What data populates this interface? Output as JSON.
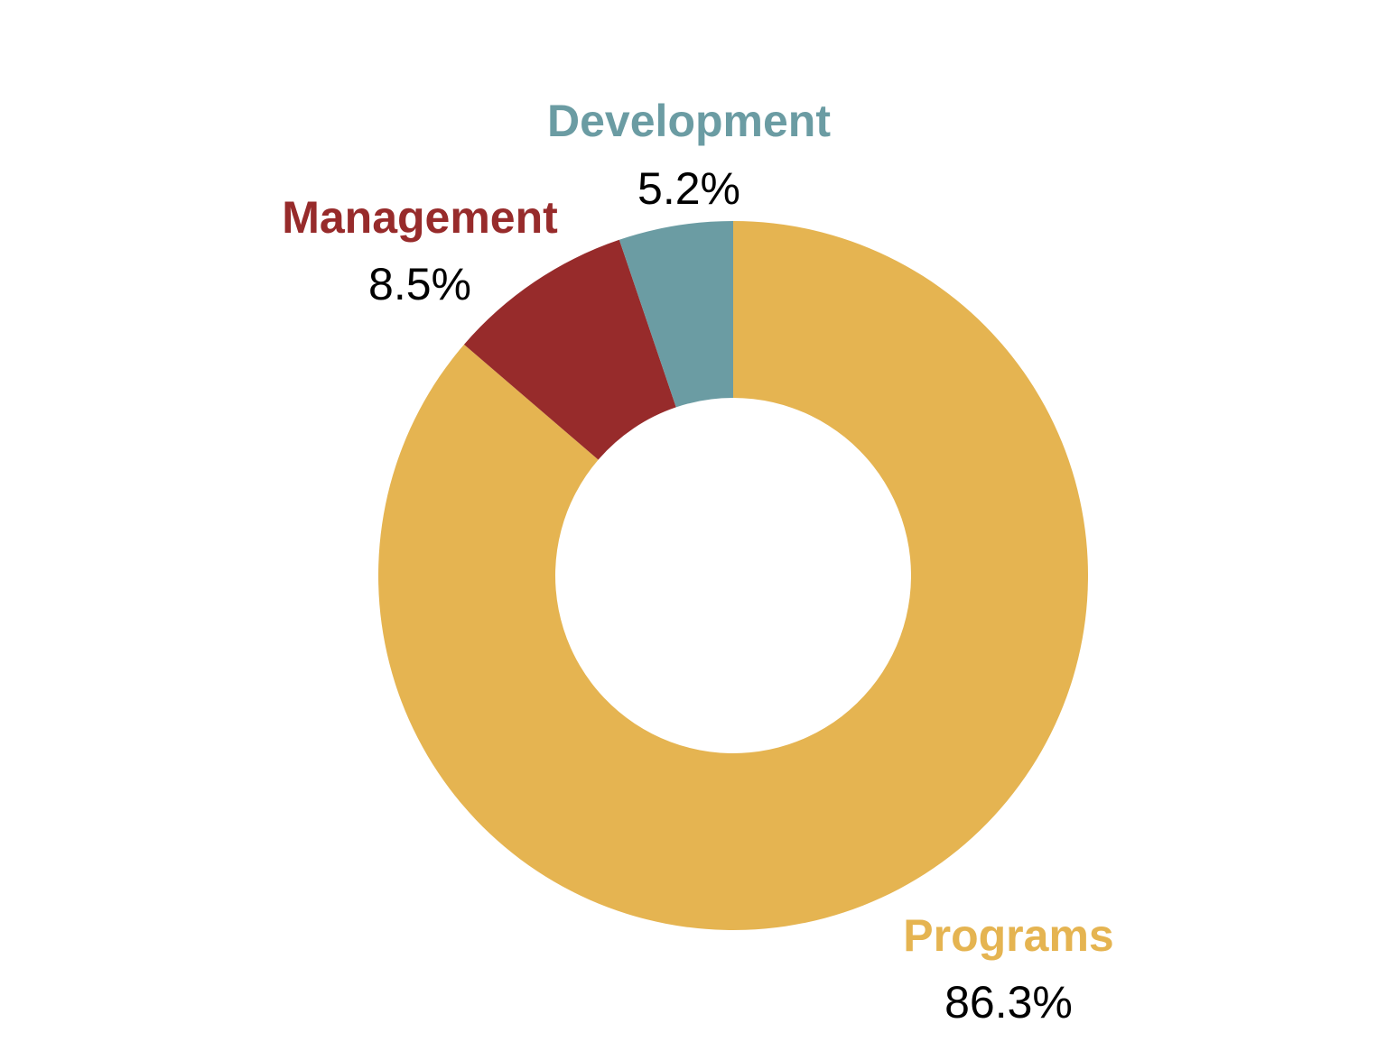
{
  "chart_data": {
    "type": "pie",
    "variant": "donut",
    "title": "",
    "slices": [
      {
        "label": "Programs",
        "value": 86.3,
        "value_label": "86.3%",
        "color": "#E5B451"
      },
      {
        "label": "Management",
        "value": 8.5,
        "value_label": "8.5%",
        "color": "#972B2B"
      },
      {
        "label": "Development",
        "value": 5.2,
        "value_label": "5.2%",
        "color": "#6B9CA3"
      }
    ],
    "legend": "none"
  }
}
